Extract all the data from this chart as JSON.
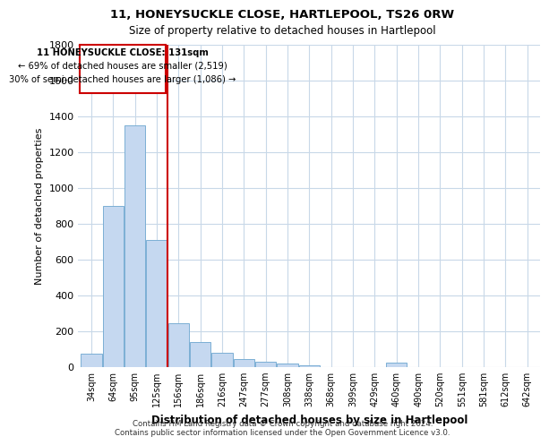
{
  "title1": "11, HONEYSUCKLE CLOSE, HARTLEPOOL, TS26 0RW",
  "title2": "Size of property relative to detached houses in Hartlepool",
  "xlabel": "Distribution of detached houses by size in Hartlepool",
  "ylabel": "Number of detached properties",
  "categories": [
    "34sqm",
    "64sqm",
    "95sqm",
    "125sqm",
    "156sqm",
    "186sqm",
    "216sqm",
    "247sqm",
    "277sqm",
    "308sqm",
    "338sqm",
    "368sqm",
    "399sqm",
    "429sqm",
    "460sqm",
    "490sqm",
    "520sqm",
    "551sqm",
    "581sqm",
    "612sqm",
    "642sqm"
  ],
  "values": [
    75,
    900,
    1350,
    710,
    245,
    140,
    80,
    45,
    28,
    20,
    10,
    0,
    0,
    0,
    22,
    0,
    0,
    0,
    0,
    0,
    0
  ],
  "bar_color": "#c5d8f0",
  "bar_edge_color": "#7bafd4",
  "grid_color": "#c8d8e8",
  "background_color": "#ffffff",
  "annotation_box_color": "#ffffff",
  "annotation_box_edge": "#cc0000",
  "vline_color": "#cc0000",
  "vline_x_index": 3,
  "annotation_line1": "11 HONEYSUCKLE CLOSE: 131sqm",
  "annotation_line2": "← 69% of detached houses are smaller (2,519)",
  "annotation_line3": "30% of semi-detached houses are larger (1,086) →",
  "footer1": "Contains HM Land Registry data © Crown copyright and database right 2024.",
  "footer2": "Contains public sector information licensed under the Open Government Licence v3.0.",
  "ylim": [
    0,
    1800
  ],
  "yticks": [
    0,
    200,
    400,
    600,
    800,
    1000,
    1200,
    1400,
    1600,
    1800
  ]
}
